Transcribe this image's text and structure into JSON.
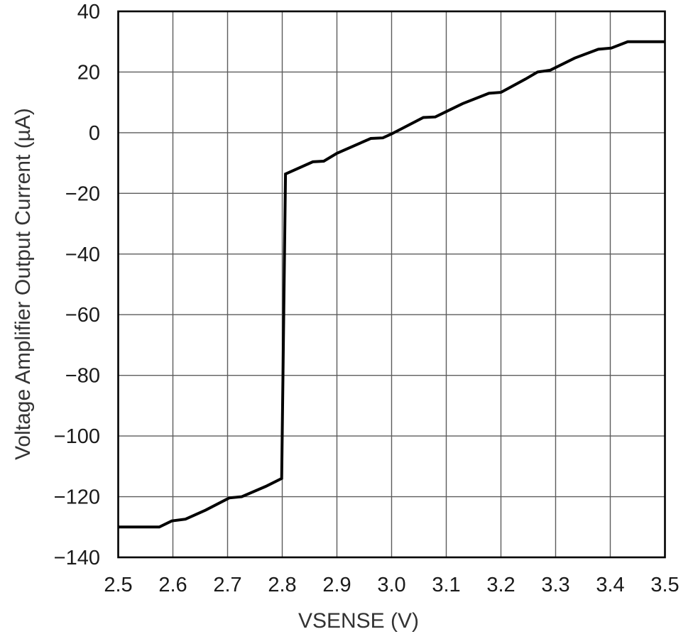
{
  "chart_data": {
    "type": "line",
    "title": "",
    "xlabel": "VSENSE (V)",
    "ylabel": "Voltage Amplifier Output Current (µA)",
    "xlim": [
      2.5,
      3.5
    ],
    "ylim": [
      -140,
      40
    ],
    "grid": true,
    "legend": "none",
    "x_ticks": {
      "values": [
        2.5,
        2.6,
        2.7,
        2.8,
        2.9,
        3.0,
        3.1,
        3.2,
        3.3,
        3.4,
        3.5
      ],
      "labels": [
        "2.5",
        "2.6",
        "2.7",
        "2.8",
        "2.9",
        "3.0",
        "3.1",
        "3.2",
        "3.3",
        "3.4",
        "3.5"
      ]
    },
    "y_ticks": {
      "values": [
        40,
        20,
        0,
        -20,
        -40,
        -60,
        -80,
        -100,
        -120,
        -140
      ],
      "labels": [
        "40",
        "20",
        "0",
        "−20",
        "−40",
        "−60",
        "−80",
        "−100",
        "−120",
        "−140"
      ]
    },
    "series": [
      {
        "name": "voltage-amplifier-output-current",
        "color": "#000000",
        "points": [
          [
            2.5,
            -130.0
          ],
          [
            2.575,
            -130.0
          ],
          [
            2.598,
            -128.0
          ],
          [
            2.623,
            -127.4
          ],
          [
            2.66,
            -124.4
          ],
          [
            2.703,
            -120.4
          ],
          [
            2.726,
            -120.0
          ],
          [
            2.77,
            -116.6
          ],
          [
            2.799,
            -114.0
          ],
          [
            2.806,
            -13.6
          ],
          [
            2.856,
            -9.6
          ],
          [
            2.876,
            -9.4
          ],
          [
            2.9,
            -6.8
          ],
          [
            2.962,
            -1.9
          ],
          [
            2.984,
            -1.7
          ],
          [
            3.0,
            -0.4
          ],
          [
            3.058,
            5.0
          ],
          [
            3.08,
            5.2
          ],
          [
            3.13,
            9.6
          ],
          [
            3.178,
            13.0
          ],
          [
            3.2,
            13.3
          ],
          [
            3.245,
            17.7
          ],
          [
            3.267,
            20.0
          ],
          [
            3.29,
            20.6
          ],
          [
            3.335,
            24.6
          ],
          [
            3.378,
            27.5
          ],
          [
            3.402,
            27.9
          ],
          [
            3.432,
            30.0
          ],
          [
            3.5,
            30.0
          ]
        ]
      }
    ],
    "colors": {
      "curve": "#000000",
      "grid": "#5c5c5c",
      "axis_border": "#000000",
      "tick_text": "#1a1a1a",
      "title_text": "#333333",
      "background": "#ffffff"
    }
  }
}
